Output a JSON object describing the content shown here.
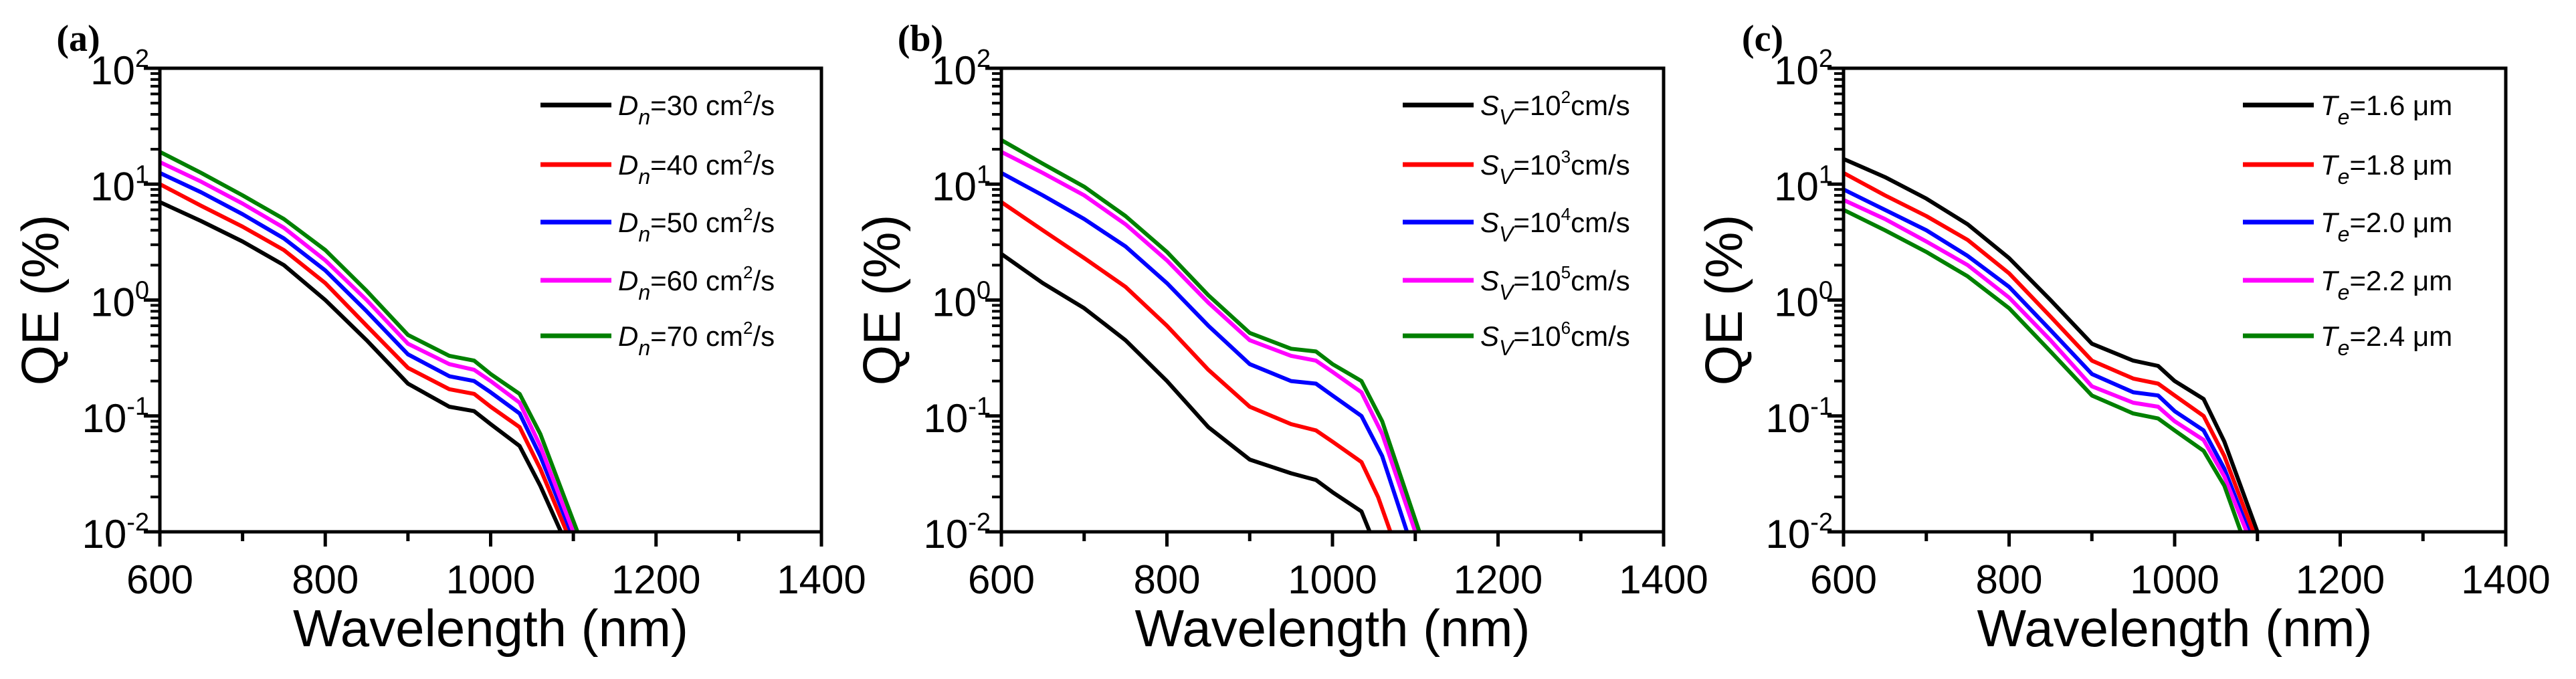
{
  "colors": {
    "black": "#000000",
    "red": "#ff0000",
    "blue": "#0000ff",
    "magenta": "#ff00ff",
    "green": "#008000"
  },
  "chart_data": [
    {
      "type": "line",
      "panel_label": "(a)",
      "xlabel": "Wavelength (nm)",
      "ylabel": "QE (%)",
      "xlim": [
        600,
        1400
      ],
      "ylim": [
        0.01,
        100
      ],
      "yscale": "log",
      "legend_position": "top-right",
      "grid": false,
      "xticks": [
        "600",
        "800",
        "1000",
        "1200",
        "1400"
      ],
      "yticks": [
        {
          "base": "10",
          "exp": "-2"
        },
        {
          "base": "10",
          "exp": "-1"
        },
        {
          "base": "10",
          "exp": "0"
        },
        {
          "base": "10",
          "exp": "1"
        },
        {
          "base": "10",
          "exp": "2"
        }
      ],
      "series": [
        {
          "legend": {
            "sym": "D",
            "sub": "n",
            "text": "=30 cm",
            "sup": "2",
            "tail": "/s"
          },
          "color": "#000000",
          "x": [
            600,
            650,
            700,
            750,
            800,
            850,
            900,
            950,
            980,
            1000,
            1035,
            1060,
            1085
          ],
          "y": [
            7,
            4.8,
            3.2,
            2.0,
            1.0,
            0.45,
            0.19,
            0.12,
            0.11,
            0.085,
            0.055,
            0.025,
            0.01
          ]
        },
        {
          "legend": {
            "sym": "D",
            "sub": "n",
            "text": "=40 cm",
            "sup": "2",
            "tail": "/s"
          },
          "color": "#ff0000",
          "x": [
            600,
            650,
            700,
            750,
            800,
            850,
            900,
            950,
            980,
            1000,
            1035,
            1060,
            1092
          ],
          "y": [
            10,
            6.5,
            4.3,
            2.7,
            1.4,
            0.6,
            0.26,
            0.17,
            0.155,
            0.12,
            0.08,
            0.035,
            0.01
          ]
        },
        {
          "legend": {
            "sym": "D",
            "sub": "n",
            "text": "=50 cm",
            "sup": "2",
            "tail": "/s"
          },
          "color": "#0000ff",
          "x": [
            600,
            650,
            700,
            750,
            800,
            850,
            900,
            950,
            980,
            1000,
            1035,
            1060,
            1097
          ],
          "y": [
            12.5,
            8.5,
            5.5,
            3.4,
            1.8,
            0.8,
            0.34,
            0.22,
            0.2,
            0.16,
            0.105,
            0.045,
            0.01
          ]
        },
        {
          "legend": {
            "sym": "D",
            "sub": "n",
            "text": "=60 cm",
            "sup": "2",
            "tail": "/s"
          },
          "color": "#ff00ff",
          "x": [
            600,
            650,
            700,
            750,
            800,
            850,
            900,
            950,
            980,
            1000,
            1035,
            1060,
            1100
          ],
          "y": [
            15.5,
            10.5,
            6.8,
            4.2,
            2.2,
            1.0,
            0.42,
            0.28,
            0.25,
            0.2,
            0.13,
            0.055,
            0.01
          ]
        },
        {
          "legend": {
            "sym": "D",
            "sub": "n",
            "text": "=70 cm",
            "sup": "2",
            "tail": "/s"
          },
          "color": "#008000",
          "x": [
            600,
            650,
            700,
            750,
            800,
            850,
            900,
            950,
            980,
            1000,
            1035,
            1060,
            1105
          ],
          "y": [
            19,
            12.5,
            8,
            5,
            2.7,
            1.2,
            0.5,
            0.33,
            0.3,
            0.23,
            0.155,
            0.07,
            0.01
          ]
        }
      ]
    },
    {
      "type": "line",
      "panel_label": "(b)",
      "xlabel": "Wavelength (nm)",
      "ylabel": "QE (%)",
      "xlim": [
        600,
        1400
      ],
      "ylim": [
        0.01,
        100
      ],
      "yscale": "log",
      "legend_position": "top-right",
      "grid": false,
      "xticks": [
        "600",
        "800",
        "1000",
        "1200",
        "1400"
      ],
      "yticks": [
        {
          "base": "10",
          "exp": "-2"
        },
        {
          "base": "10",
          "exp": "-1"
        },
        {
          "base": "10",
          "exp": "0"
        },
        {
          "base": "10",
          "exp": "1"
        },
        {
          "base": "10",
          "exp": "2"
        }
      ],
      "series": [
        {
          "legend": {
            "sym": "S",
            "sub": "V",
            "text": "=10",
            "sup": "2",
            "tail": "cm/s"
          },
          "color": "#000000",
          "x": [
            600,
            650,
            700,
            750,
            800,
            850,
            900,
            950,
            980,
            1000,
            1035,
            1045
          ],
          "y": [
            2.5,
            1.4,
            0.85,
            0.45,
            0.2,
            0.08,
            0.042,
            0.032,
            0.028,
            0.022,
            0.015,
            0.01
          ]
        },
        {
          "legend": {
            "sym": "S",
            "sub": "V",
            "text": "=10",
            "sup": "3",
            "tail": "cm/s"
          },
          "color": "#ff0000",
          "x": [
            600,
            650,
            700,
            750,
            800,
            850,
            900,
            950,
            980,
            1000,
            1035,
            1055,
            1070
          ],
          "y": [
            7,
            4,
            2.3,
            1.3,
            0.6,
            0.25,
            0.12,
            0.085,
            0.075,
            0.06,
            0.04,
            0.02,
            0.01
          ]
        },
        {
          "legend": {
            "sym": "S",
            "sub": "V",
            "text": "=10",
            "sup": "4",
            "tail": "cm/s"
          },
          "color": "#0000ff",
          "x": [
            600,
            650,
            700,
            750,
            800,
            850,
            900,
            950,
            980,
            1000,
            1035,
            1060,
            1090
          ],
          "y": [
            12.5,
            8,
            5,
            2.9,
            1.4,
            0.6,
            0.28,
            0.2,
            0.19,
            0.15,
            0.1,
            0.045,
            0.01
          ]
        },
        {
          "legend": {
            "sym": "S",
            "sub": "V",
            "text": "=10",
            "sup": "5",
            "tail": "cm/s"
          },
          "color": "#ff00ff",
          "x": [
            600,
            650,
            700,
            750,
            800,
            850,
            900,
            950,
            980,
            1000,
            1035,
            1060,
            1100
          ],
          "y": [
            19,
            12.5,
            8,
            4.5,
            2.2,
            0.95,
            0.45,
            0.33,
            0.3,
            0.24,
            0.16,
            0.07,
            0.01
          ]
        },
        {
          "legend": {
            "sym": "S",
            "sub": "V",
            "text": "=10",
            "sup": "6",
            "tail": "cm/s"
          },
          "color": "#008000",
          "x": [
            600,
            650,
            700,
            750,
            800,
            850,
            900,
            950,
            980,
            1000,
            1035,
            1060,
            1105
          ],
          "y": [
            24,
            15,
            9.5,
            5.3,
            2.6,
            1.1,
            0.52,
            0.38,
            0.36,
            0.28,
            0.2,
            0.09,
            0.01
          ]
        }
      ]
    },
    {
      "type": "line",
      "panel_label": "(c)",
      "xlabel": "Wavelength (nm)",
      "ylabel": "QE (%)",
      "xlim": [
        600,
        1400
      ],
      "ylim": [
        0.01,
        100
      ],
      "yscale": "log",
      "legend_position": "top-right",
      "grid": false,
      "xticks": [
        "600",
        "800",
        "1000",
        "1200",
        "1400"
      ],
      "yticks": [
        {
          "base": "10",
          "exp": "-2"
        },
        {
          "base": "10",
          "exp": "-1"
        },
        {
          "base": "10",
          "exp": "0"
        },
        {
          "base": "10",
          "exp": "1"
        },
        {
          "base": "10",
          "exp": "2"
        }
      ],
      "series": [
        {
          "legend": {
            "sym": "T",
            "sub": "e",
            "text": "=1.6 μm",
            "sup": "",
            "tail": ""
          },
          "color": "#000000",
          "x": [
            600,
            650,
            700,
            750,
            800,
            850,
            900,
            950,
            980,
            1000,
            1035,
            1060,
            1100
          ],
          "y": [
            16.5,
            11.5,
            7.5,
            4.5,
            2.3,
            1.0,
            0.42,
            0.3,
            0.27,
            0.2,
            0.14,
            0.06,
            0.01
          ]
        },
        {
          "legend": {
            "sym": "T",
            "sub": "e",
            "text": "=1.8 μm",
            "sup": "",
            "tail": ""
          },
          "color": "#ff0000",
          "x": [
            600,
            650,
            700,
            750,
            800,
            850,
            900,
            950,
            980,
            1000,
            1035,
            1060,
            1095
          ],
          "y": [
            12.5,
            8,
            5.3,
            3.3,
            1.7,
            0.72,
            0.3,
            0.21,
            0.19,
            0.15,
            0.1,
            0.045,
            0.01
          ]
        },
        {
          "legend": {
            "sym": "T",
            "sub": "e",
            "text": "=2.0 μm",
            "sup": "",
            "tail": ""
          },
          "color": "#0000ff",
          "x": [
            600,
            650,
            700,
            750,
            800,
            850,
            900,
            950,
            980,
            1000,
            1035,
            1060,
            1090
          ],
          "y": [
            9,
            6,
            4,
            2.4,
            1.3,
            0.55,
            0.23,
            0.16,
            0.15,
            0.11,
            0.075,
            0.035,
            0.01
          ]
        },
        {
          "legend": {
            "sym": "T",
            "sub": "e",
            "text": "=2.2 μm",
            "sup": "",
            "tail": ""
          },
          "color": "#ff00ff",
          "x": [
            600,
            650,
            700,
            750,
            800,
            850,
            900,
            950,
            980,
            1000,
            1035,
            1060,
            1087
          ],
          "y": [
            7.3,
            5,
            3.2,
            2.0,
            1.05,
            0.45,
            0.18,
            0.13,
            0.12,
            0.09,
            0.062,
            0.03,
            0.01
          ]
        },
        {
          "legend": {
            "sym": "T",
            "sub": "e",
            "text": "=2.4 μm",
            "sup": "",
            "tail": ""
          },
          "color": "#008000",
          "x": [
            600,
            650,
            700,
            750,
            800,
            850,
            900,
            950,
            980,
            1000,
            1035,
            1060,
            1080
          ],
          "y": [
            6,
            4,
            2.6,
            1.6,
            0.85,
            0.36,
            0.15,
            0.105,
            0.095,
            0.075,
            0.05,
            0.025,
            0.01
          ]
        }
      ]
    }
  ]
}
